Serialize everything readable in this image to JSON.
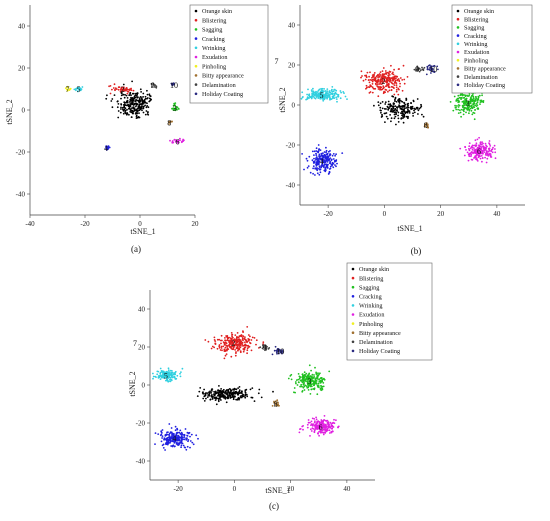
{
  "chart_data": [
    {
      "panel": "(a)",
      "type": "scatter",
      "xlabel": "tSNE_1",
      "ylabel": "tSNE_2",
      "xlim": [
        -40,
        20
      ],
      "ylim": [
        -50,
        50
      ],
      "xticks": [
        "-40",
        "-20",
        "0",
        "20"
      ],
      "yticks": [
        "40",
        "20",
        "0",
        "-20",
        "-40"
      ],
      "legend_entries": [
        "Orange skin",
        "Blistering",
        "Sagging",
        "Cracking",
        "Wrinking",
        "Exudation",
        "Pinholing",
        "Bitty appearance",
        "Delamination",
        "Holiday Coating"
      ],
      "clusters": [
        {
          "label": "1",
          "color": "#000000",
          "center": [
            -2,
            3
          ],
          "spread": [
            6,
            6
          ],
          "n": 260
        },
        {
          "label": "2",
          "color": "#e02020",
          "center": [
            -6,
            10
          ],
          "spread": [
            4,
            2
          ],
          "n": 50
        },
        {
          "label": "3",
          "color": "#20c020",
          "center": [
            13,
            1
          ],
          "spread": [
            1.2,
            2
          ],
          "n": 25
        },
        {
          "label": "4",
          "color": "#2020e0",
          "center": [
            -12,
            -18
          ],
          "spread": [
            1,
            1.2
          ],
          "n": 15
        },
        {
          "label": "5",
          "color": "#30d0e0",
          "center": [
            -22,
            10
          ],
          "spread": [
            1.5,
            1.5
          ],
          "n": 18
        },
        {
          "label": "6",
          "color": "#e020e0",
          "center": [
            14,
            -15
          ],
          "spread": [
            2.5,
            1
          ],
          "n": 25
        },
        {
          "label": "7",
          "color": "#f0f020",
          "center": [
            -26,
            10
          ],
          "spread": [
            1,
            1
          ],
          "n": 10
        },
        {
          "label": "8",
          "color": "#a07030",
          "center": [
            11,
            -6
          ],
          "spread": [
            0.8,
            0.8
          ],
          "n": 8
        },
        {
          "label": "9",
          "color": "#404040",
          "center": [
            5,
            12
          ],
          "spread": [
            1.2,
            1
          ],
          "n": 10
        },
        {
          "label": "10",
          "color": "#2a2a80",
          "center": [
            12,
            12
          ],
          "spread": [
            1,
            0.8
          ],
          "n": 8
        }
      ]
    },
    {
      "panel": "(b)",
      "type": "scatter",
      "xlabel": "tSNE_1",
      "ylabel": "tSNE_2",
      "xlim": [
        -30,
        50
      ],
      "ylim": [
        -50,
        50
      ],
      "xticks": [
        "-20",
        "0",
        "20",
        "40"
      ],
      "yticks": [
        "40",
        "20",
        "0",
        "-20",
        "-40"
      ],
      "legend_entries": [
        "Orange skin",
        "Blistering",
        "Sagging",
        "Cracking",
        "Wrinking",
        "Exudation",
        "Pinholing",
        "Bitty appearance",
        "Delamination",
        "Holiday Coating"
      ],
      "clusters": [
        {
          "label": "1",
          "color": "#000000",
          "center": [
            5,
            -2
          ],
          "spread": [
            7,
            5
          ],
          "n": 200
        },
        {
          "label": "2",
          "color": "#e02020",
          "center": [
            0,
            12
          ],
          "spread": [
            6,
            5
          ],
          "n": 260
        },
        {
          "label": "3",
          "color": "#20c020",
          "center": [
            30,
            1
          ],
          "spread": [
            4.5,
            5
          ],
          "n": 200
        },
        {
          "label": "4",
          "color": "#2020e0",
          "center": [
            -22,
            -28
          ],
          "spread": [
            4.5,
            5
          ],
          "n": 220
        },
        {
          "label": "5",
          "color": "#30d0e0",
          "center": [
            -22,
            5
          ],
          "spread": [
            6,
            2.5
          ],
          "n": 200
        },
        {
          "label": "6",
          "color": "#e020e0",
          "center": [
            34,
            -23
          ],
          "spread": [
            4.5,
            4
          ],
          "n": 200
        },
        {
          "label": "7",
          "color": "#f0f020",
          "center": [
            -38,
            22
          ],
          "spread": [
            3,
            3
          ],
          "n": 120
        },
        {
          "label": "8",
          "color": "#a07030",
          "center": [
            15,
            -10
          ],
          "spread": [
            1,
            1
          ],
          "n": 20
        },
        {
          "label": "9",
          "color": "#404040",
          "center": [
            12,
            18
          ],
          "spread": [
            1.5,
            1.5
          ],
          "n": 20
        },
        {
          "label": "10",
          "color": "#2a2a80",
          "center": [
            17,
            18
          ],
          "spread": [
            1.5,
            2
          ],
          "n": 30
        }
      ]
    },
    {
      "panel": "(c)",
      "type": "scatter",
      "xlabel": "tSNE_1",
      "ylabel": "tSNE_2",
      "xlim": [
        -30,
        50
      ],
      "ylim": [
        -50,
        50
      ],
      "xticks": [
        "-20",
        "0",
        "20",
        "40"
      ],
      "yticks": [
        "40",
        "20",
        "0",
        "-20",
        "-40"
      ],
      "legend_entries": [
        "Orange skin",
        "Blistering",
        "Sagging",
        "Cracking",
        "Wrinking",
        "Exudation",
        "Pinholing",
        "Bitty appearance",
        "Delamination",
        "Holiday Coating"
      ],
      "clusters": [
        {
          "label": "1",
          "color": "#000000",
          "center": [
            -3,
            -5
          ],
          "spread": [
            9,
            3
          ],
          "n": 260
        },
        {
          "label": "2",
          "color": "#e02020",
          "center": [
            0,
            22
          ],
          "spread": [
            6,
            5
          ],
          "n": 260
        },
        {
          "label": "3",
          "color": "#20c020",
          "center": [
            27,
            2
          ],
          "spread": [
            5,
            5
          ],
          "n": 220
        },
        {
          "label": "4",
          "color": "#2020e0",
          "center": [
            -21,
            -28
          ],
          "spread": [
            5,
            4.5
          ],
          "n": 230
        },
        {
          "label": "5",
          "color": "#30d0e0",
          "center": [
            -24,
            5
          ],
          "spread": [
            3.5,
            3
          ],
          "n": 160
        },
        {
          "label": "6",
          "color": "#e020e0",
          "center": [
            31,
            -22
          ],
          "spread": [
            4.5,
            4
          ],
          "n": 200
        },
        {
          "label": "7",
          "color": "#f0f020",
          "center": [
            -35,
            22
          ],
          "spread": [
            2.8,
            2.8
          ],
          "n": 120
        },
        {
          "label": "8",
          "color": "#a07030",
          "center": [
            15,
            -10
          ],
          "spread": [
            1,
            1
          ],
          "n": 18
        },
        {
          "label": "9",
          "color": "#404040",
          "center": [
            11,
            20
          ],
          "spread": [
            1.3,
            1.3
          ],
          "n": 20
        },
        {
          "label": "10",
          "color": "#2a2a80",
          "center": [
            16,
            18
          ],
          "spread": [
            1.5,
            1.8
          ],
          "n": 30
        }
      ]
    }
  ]
}
